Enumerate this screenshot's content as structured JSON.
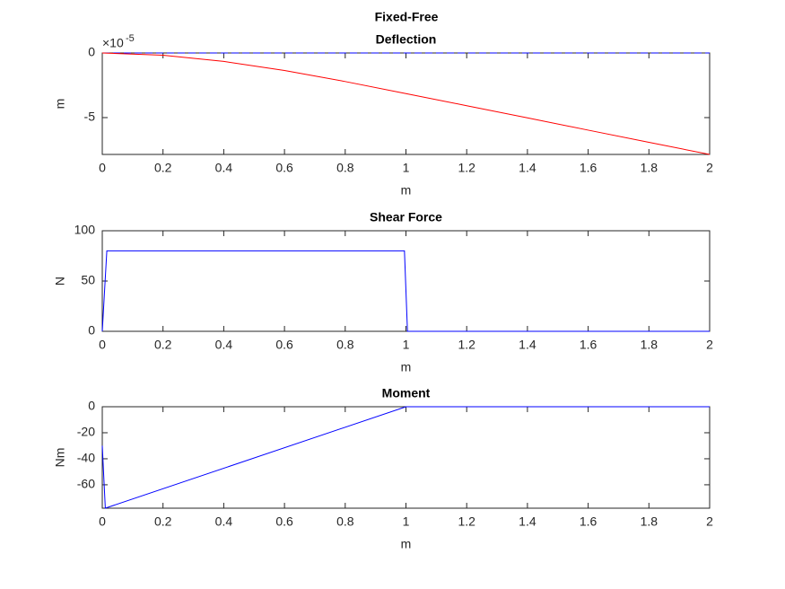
{
  "title": "Fixed-Free",
  "chart_data": [
    {
      "type": "line",
      "title": "Deflection",
      "xlabel": "m",
      "ylabel": "m",
      "y_multiplier": {
        "base": "×10",
        "exponent": "-5"
      },
      "xlim": [
        0,
        2
      ],
      "xticks": [
        0,
        0.2,
        0.4,
        0.6,
        0.8,
        1,
        1.2,
        1.4,
        1.6,
        1.8,
        2
      ],
      "ylim": [
        -7.85,
        0
      ],
      "yticks": [
        -5,
        0
      ],
      "series": [
        {
          "color": "#0000ff",
          "style": "dashed",
          "x": [
            0,
            2
          ],
          "values": [
            0,
            0
          ]
        },
        {
          "color": "#ff0000",
          "style": "solid",
          "x": [
            0,
            0.2,
            0.4,
            0.6,
            0.8,
            1,
            1.2,
            1.4,
            1.6,
            1.8,
            2
          ],
          "values": [
            0,
            -0.176,
            -0.653,
            -1.357,
            -2.21,
            -3.14,
            -4.08,
            -5.02,
            -5.97,
            -6.91,
            -7.85
          ]
        }
      ]
    },
    {
      "type": "line",
      "title": "Shear Force",
      "xlabel": "m",
      "ylabel": "N",
      "xlim": [
        0,
        2
      ],
      "xticks": [
        0,
        0.2,
        0.4,
        0.6,
        0.8,
        1,
        1.2,
        1.4,
        1.6,
        1.8,
        2
      ],
      "ylim": [
        0,
        100
      ],
      "yticks": [
        0,
        50,
        100
      ],
      "series": [
        {
          "color": "#0000ff",
          "style": "solid",
          "x": [
            0,
            0.015,
            0.995,
            1.005,
            2
          ],
          "values": [
            0,
            80,
            80,
            0,
            0
          ]
        }
      ]
    },
    {
      "type": "line",
      "title": "Moment",
      "xlabel": "m",
      "ylabel": "Nm",
      "xlim": [
        0,
        2
      ],
      "xticks": [
        0,
        0.2,
        0.4,
        0.6,
        0.8,
        1,
        1.2,
        1.4,
        1.6,
        1.8,
        2
      ],
      "ylim": [
        -78,
        0
      ],
      "yticks": [
        -60,
        -40,
        -20,
        0
      ],
      "series": [
        {
          "color": "#0000ff",
          "style": "solid",
          "x": [
            0,
            0.01,
            1,
            2
          ],
          "values": [
            -30,
            -78,
            0,
            0
          ]
        }
      ]
    }
  ]
}
